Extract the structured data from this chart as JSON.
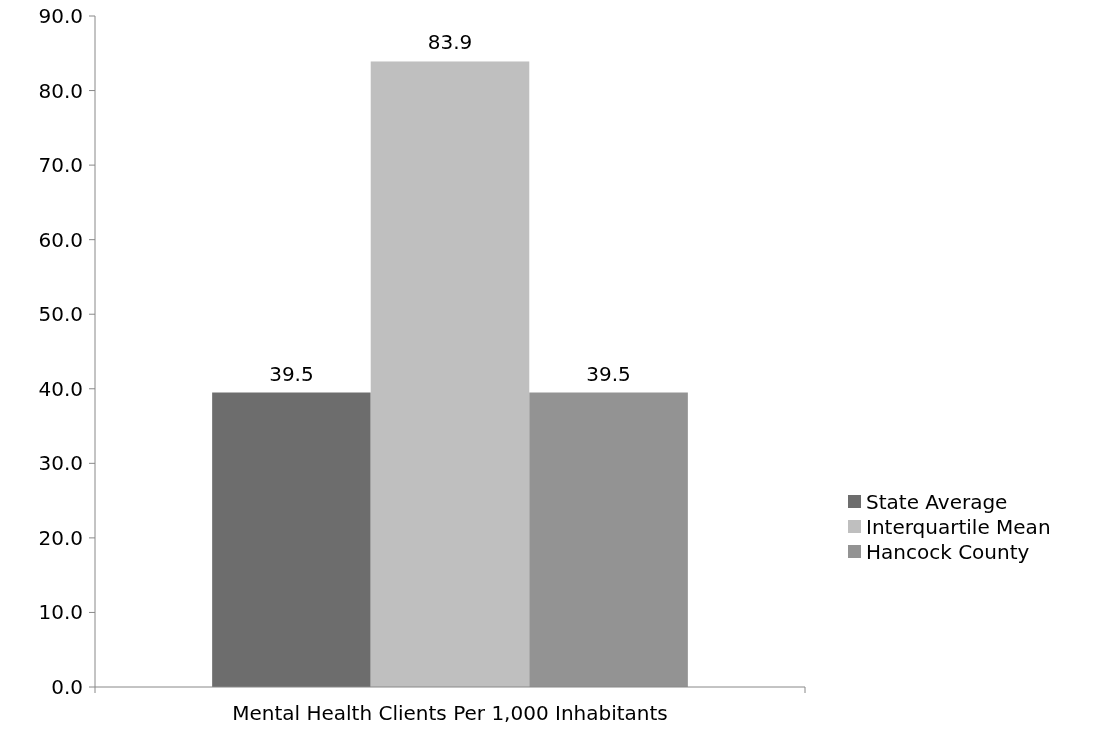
{
  "chart_data": {
    "type": "bar",
    "categories": [
      "Mental Health Clients Per 1,000 Inhabitants"
    ],
    "series": [
      {
        "name": "State Average",
        "color": "#6d6d6d",
        "values": [
          39.5
        ]
      },
      {
        "name": "Interquartile Mean",
        "color": "#bfbfbf",
        "values": [
          83.9
        ]
      },
      {
        "name": "Hancock County",
        "color": "#939393",
        "values": [
          39.5
        ]
      }
    ],
    "ylim": [
      0,
      90
    ],
    "yticks": [
      {
        "value": 0,
        "label": "0.0"
      },
      {
        "value": 10,
        "label": "10.0"
      },
      {
        "value": 20,
        "label": "20.0"
      },
      {
        "value": 30,
        "label": "30.0"
      },
      {
        "value": 40,
        "label": "40.0"
      },
      {
        "value": 50,
        "label": "50.0"
      },
      {
        "value": 60,
        "label": "60.0"
      },
      {
        "value": 70,
        "label": "70.0"
      },
      {
        "value": 80,
        "label": "80.0"
      },
      {
        "value": 90,
        "label": "90.0"
      }
    ],
    "data_labels": true,
    "legend": "right",
    "grid": false
  }
}
